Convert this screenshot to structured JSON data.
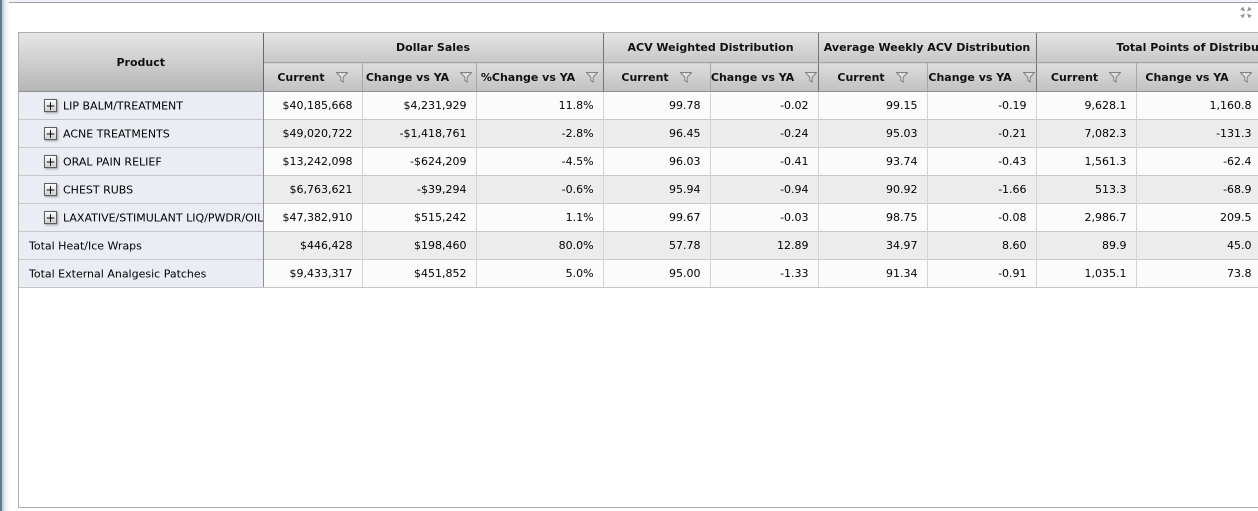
{
  "toolbar": {
    "collapse_icon": "collapse-arrows-icon",
    "collapse_color": "#8e979e"
  },
  "colors": {
    "panel_border": "#aeaeae",
    "header_group_divider": "#747474",
    "product_cell_bg": "#eaedf3",
    "row_bg": "#fbfbfb",
    "row_alt_bg": "#ececec",
    "gutter_edge": "#5d7a94"
  },
  "table": {
    "product_header": "Product",
    "filter_icon": "funnel",
    "expand_icon": "plus",
    "expand_glyph": "+",
    "groups": [
      {
        "label": "Dollar Sales",
        "columns": [
          "Current",
          "Change vs YA",
          "%Change vs YA"
        ]
      },
      {
        "label": "ACV Weighted Distribution",
        "columns": [
          "Current",
          "Change vs YA"
        ]
      },
      {
        "label": "Average Weekly ACV Distribution",
        "columns": [
          "Current",
          "Change vs YA"
        ]
      },
      {
        "label": "Total Points of Distribution",
        "columns": [
          "Current",
          "Change vs YA"
        ]
      }
    ],
    "rows": [
      {
        "product": "LIP BALM/TREATMENT",
        "expandable": true,
        "values": [
          "$40,185,668",
          "$4,231,929",
          "11.8%",
          "99.78",
          "-0.02",
          "99.15",
          "-0.19",
          "9,628.1",
          "1,160.8"
        ]
      },
      {
        "product": "ACNE TREATMENTS",
        "expandable": true,
        "values": [
          "$49,020,722",
          "-$1,418,761",
          "-2.8%",
          "96.45",
          "-0.24",
          "95.03",
          "-0.21",
          "7,082.3",
          "-131.3"
        ]
      },
      {
        "product": "ORAL PAIN RELIEF",
        "expandable": true,
        "values": [
          "$13,242,098",
          "-$624,209",
          "-4.5%",
          "96.03",
          "-0.41",
          "93.74",
          "-0.43",
          "1,561.3",
          "-62.4"
        ]
      },
      {
        "product": "CHEST RUBS",
        "expandable": true,
        "values": [
          "$6,763,621",
          "-$39,294",
          "-0.6%",
          "95.94",
          "-0.94",
          "90.92",
          "-1.66",
          "513.3",
          "-68.9"
        ]
      },
      {
        "product": "LAXATIVE/STIMULANT LIQ/PWDR/OIL",
        "expandable": true,
        "values": [
          "$47,382,910",
          "$515,242",
          "1.1%",
          "99.67",
          "-0.03",
          "98.75",
          "-0.08",
          "2,986.7",
          "209.5"
        ]
      },
      {
        "product": "Total Heat/Ice Wraps",
        "expandable": false,
        "values": [
          "$446,428",
          "$198,460",
          "80.0%",
          "57.78",
          "12.89",
          "34.97",
          "8.60",
          "89.9",
          "45.0"
        ]
      },
      {
        "product": "Total External Analgesic Patches",
        "expandable": false,
        "values": [
          "$9,433,317",
          "$451,852",
          "5.0%",
          "95.00",
          "-1.33",
          "91.34",
          "-0.91",
          "1,035.1",
          "73.8"
        ]
      }
    ]
  }
}
